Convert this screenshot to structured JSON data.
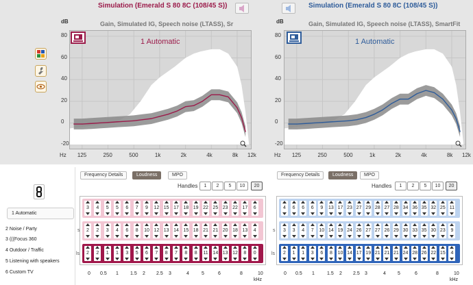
{
  "colors": {
    "left_accent": "#9b1b4a",
    "right_accent": "#2e5c9a",
    "left_row_bg": "#f2c6d3",
    "left_row_bg_active": "#a0174a",
    "right_row_bg": "#bdd3ef",
    "right_row_bg_active": "#2f64b9"
  },
  "left": {
    "title": "Simulation (Emerald S 80 8C (108/45 S))",
    "subtitle": "Gain, Simulated IG, Speech noise (LTASS), Sr",
    "program_label": "1 Automatic",
    "unit_label": "dB",
    "tabs": [
      "Frequency Details",
      "Loudness",
      "MPO"
    ],
    "handles_label": "Handles",
    "handles": [
      "1",
      "2",
      "5",
      "10",
      "20"
    ],
    "rows": [
      {
        "label": "",
        "values": [
          "3",
          "4",
          "5",
          "5",
          "6",
          "7",
          "9",
          "12",
          "15",
          "17",
          "18",
          "19",
          "22",
          "25",
          "23",
          "22",
          "17",
          "6"
        ]
      },
      {
        "label": "s",
        "values": [
          "2",
          "2",
          "3",
          "4",
          "6",
          "8",
          "10",
          "12",
          "13",
          "14",
          "15",
          "18",
          "21",
          "21",
          "20",
          "18",
          "13",
          "4"
        ]
      },
      {
        "label": "ls",
        "values": [
          "2",
          "2",
          "1",
          "1",
          "3",
          "5",
          "6",
          "7",
          "8",
          "7",
          "8",
          "8",
          "11",
          "14",
          "13",
          "12",
          "8",
          "0"
        ]
      }
    ]
  },
  "right": {
    "title": "Simulation (Emerald S 80 8C (108/45 S))",
    "subtitle": "Gain, Simulated IG, Speech noise (LTASS), SmartFit",
    "program_label": "1 Automatic",
    "unit_label": "dB",
    "tabs": [
      "Frequency Details",
      "Loudness",
      "MPO"
    ],
    "handles_label": "Handles",
    "handles": [
      "1",
      "2",
      "5",
      "10",
      "20"
    ],
    "rows": [
      {
        "label": "",
        "values": [
          "4",
          "6",
          "6",
          "6",
          "9",
          "13",
          "17",
          "23",
          "27",
          "29",
          "28",
          "27",
          "28",
          "34",
          "36",
          "35",
          "32",
          "25",
          "11"
        ]
      },
      {
        "label": "s",
        "values": [
          "3",
          "3",
          "4",
          "7",
          "10",
          "14",
          "19",
          "24",
          "26",
          "27",
          "27",
          "26",
          "29",
          "30",
          "33",
          "35",
          "30",
          "23",
          "9"
        ]
      },
      {
        "label": "ls",
        "values": [
          "2",
          "1",
          "1",
          "3",
          "6",
          "8",
          "10",
          "14",
          "17",
          "19",
          "21",
          "21",
          "21",
          "24",
          "28",
          "26",
          "22",
          "15",
          "4"
        ]
      }
    ]
  },
  "chart_y_ticks": [
    "dB",
    "80",
    "60",
    "40",
    "20",
    "0",
    "-20"
  ],
  "chart_x_ticks": [
    "Hz",
    "125",
    "250",
    "500",
    "1k",
    "2k",
    "4k",
    "8k",
    "12k"
  ],
  "bottom_x_ticks": [
    "0",
    "0.5",
    "1",
    "1.5",
    "2",
    "2.5",
    "3",
    "4",
    "5",
    "6",
    "8",
    "10"
  ],
  "bottom_x_unit": "kHz",
  "programs": [
    {
      "label": "1 Automatic",
      "active": true
    },
    {
      "label": "2 Noise / Party",
      "active": false
    },
    {
      "label": "3 (((Focus 360",
      "active": false
    },
    {
      "label": "4 Outdoor / Traffic",
      "active": false
    },
    {
      "label": "5 Listening with speakers",
      "active": false
    },
    {
      "label": "6 Custom TV",
      "active": false
    }
  ],
  "chart_data": [
    {
      "type": "line",
      "title": "Gain, Simulated IG, Speech noise (LTASS), Sr",
      "annotation": "1 Automatic",
      "xlabel": "Hz",
      "ylabel": "dB",
      "x": [
        100,
        125,
        160,
        200,
        250,
        315,
        400,
        500,
        630,
        800,
        1000,
        1250,
        1600,
        2000,
        2500,
        3150,
        4000,
        5000,
        6300,
        8000,
        9000,
        10000
      ],
      "series": [
        {
          "name": "gain",
          "values": [
            -1,
            -1,
            -0.5,
            0,
            0.5,
            1,
            1.5,
            2,
            3,
            4,
            6,
            8,
            11,
            15,
            16,
            20,
            26,
            26,
            24,
            14,
            5,
            -8
          ]
        }
      ],
      "ylim": [
        -25,
        85
      ]
    },
    {
      "type": "line",
      "title": "Gain, Simulated IG, Speech noise (LTASS), SmartFit",
      "annotation": "1 Automatic",
      "xlabel": "Hz",
      "ylabel": "dB",
      "x": [
        100,
        125,
        160,
        200,
        250,
        315,
        400,
        500,
        630,
        800,
        1000,
        1250,
        1600,
        2000,
        2500,
        3150,
        4000,
        5000,
        6300,
        8000,
        9000,
        10000
      ],
      "series": [
        {
          "name": "gain",
          "values": [
            -1,
            -1,
            -0.5,
            0,
            0.5,
            1,
            1.5,
            2,
            3,
            5,
            8,
            12,
            18,
            22,
            22,
            27,
            30,
            28,
            22,
            12,
            4,
            -8
          ]
        }
      ],
      "ylim": [
        -25,
        85
      ]
    }
  ]
}
